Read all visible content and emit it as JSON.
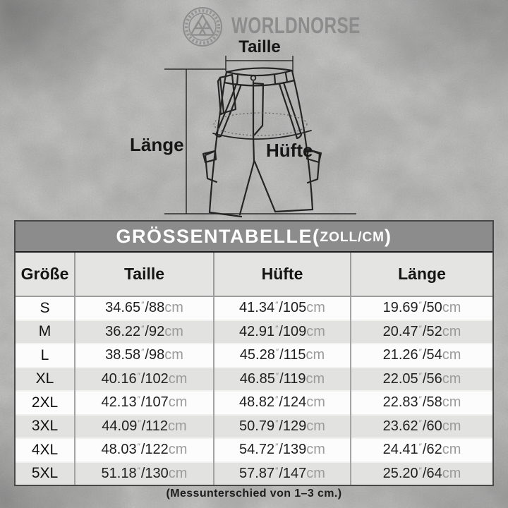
{
  "brand": {
    "name": "WORLDNORSE",
    "logo_icon": "valknut-ring-logo"
  },
  "diagram": {
    "waist_label": "Taille",
    "hip_label": "Hüfte",
    "length_label": "Länge"
  },
  "table": {
    "title_main": "GRÖSSENTABELLE",
    "title_open": "(",
    "title_units": "ZOLL/CM",
    "title_close": ")",
    "columns": [
      "Größe",
      "Taille",
      "Hüfte",
      "Länge"
    ],
    "inch_mark": "″",
    "unit_suffix": "cm",
    "rows": [
      {
        "size": "S",
        "taille": {
          "in": "34.65",
          "cm": "88"
        },
        "huefte": {
          "in": "41.34",
          "cm": "105"
        },
        "laenge": {
          "in": "19.69",
          "cm": "50"
        }
      },
      {
        "size": "M",
        "taille": {
          "in": "36.22",
          "cm": "92"
        },
        "huefte": {
          "in": "42.91",
          "cm": "109"
        },
        "laenge": {
          "in": "20.47",
          "cm": "52"
        }
      },
      {
        "size": "L",
        "taille": {
          "in": "38.58",
          "cm": "98"
        },
        "huefte": {
          "in": "45.28",
          "cm": "115"
        },
        "laenge": {
          "in": "21.26",
          "cm": "54"
        }
      },
      {
        "size": "XL",
        "taille": {
          "in": "40.16",
          "cm": "102"
        },
        "huefte": {
          "in": "46.85",
          "cm": "119"
        },
        "laenge": {
          "in": "22.05",
          "cm": "56"
        }
      },
      {
        "size": "2XL",
        "taille": {
          "in": "42.13",
          "cm": "107"
        },
        "huefte": {
          "in": "48.82",
          "cm": "124"
        },
        "laenge": {
          "in": "22.83",
          "cm": "58"
        }
      },
      {
        "size": "3XL",
        "taille": {
          "in": "44.09",
          "cm": "112"
        },
        "huefte": {
          "in": "50.79",
          "cm": "129"
        },
        "laenge": {
          "in": "23.62",
          "cm": "60"
        }
      },
      {
        "size": "4XL",
        "taille": {
          "in": "48.03",
          "cm": "122"
        },
        "huefte": {
          "in": "54.72",
          "cm": "139"
        },
        "laenge": {
          "in": "24.41",
          "cm": "62"
        }
      },
      {
        "size": "5XL",
        "taille": {
          "in": "51.18",
          "cm": "130"
        },
        "huefte": {
          "in": "57.87",
          "cm": "147"
        },
        "laenge": {
          "in": "25.20",
          "cm": "64"
        }
      }
    ]
  },
  "footnote": "(Messunterschied von 1–3 cm.)",
  "colors": {
    "page_bg": "#b5b5b4",
    "title_bar_bg": "#8c8c8c",
    "title_text": "#ffffff",
    "header_row_bg": "#e4e4e2",
    "row_bg": "#fcfcfc",
    "row_alt_bg": "#e2e2e0",
    "body_text": "#1f1f1f",
    "unit_text": "#9b9b9b",
    "brand_text": "#8c8c8c",
    "line_art": "#242424"
  },
  "chart_data": {
    "type": "table",
    "title": "GRÖSSENTABELLE(ZOLL/CM)",
    "columns": [
      "Größe",
      "Taille",
      "Hüfte",
      "Länge"
    ],
    "rows": [
      [
        "S",
        "34.65″/88cm",
        "41.34″/105cm",
        "19.69″/50cm"
      ],
      [
        "M",
        "36.22″/92cm",
        "42.91″/109cm",
        "20.47″/52cm"
      ],
      [
        "L",
        "38.58″/98cm",
        "45.28″/115cm",
        "21.26″/54cm"
      ],
      [
        "XL",
        "40.16″/102cm",
        "46.85″/119cm",
        "22.05″/56cm"
      ],
      [
        "2XL",
        "42.13″/107cm",
        "48.82″/124cm",
        "22.83″/58cm"
      ],
      [
        "3XL",
        "44.09″/112cm",
        "50.79″/129cm",
        "23.62″/60cm"
      ],
      [
        "4XL",
        "48.03″/122cm",
        "54.72″/139cm",
        "24.41″/62cm"
      ],
      [
        "5XL",
        "51.18″/130cm",
        "57.87″/147cm",
        "25.20″/64cm"
      ]
    ]
  }
}
